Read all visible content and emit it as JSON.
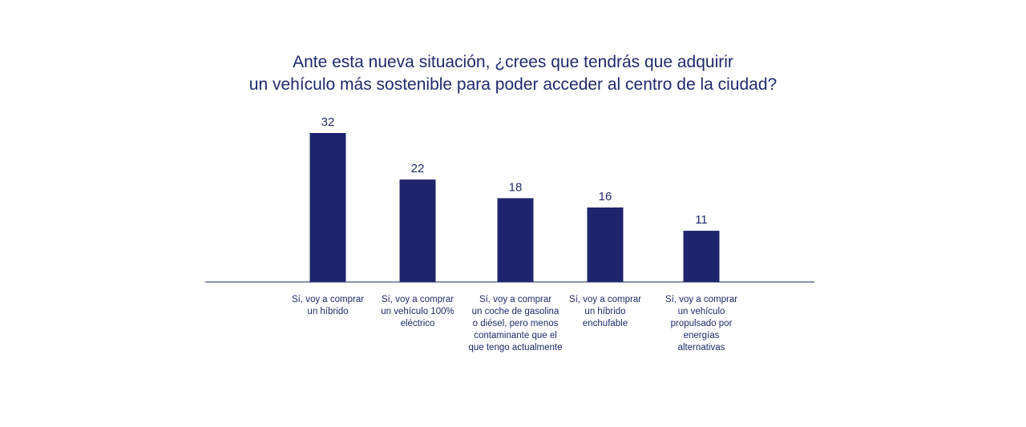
{
  "chart_data": {
    "type": "bar",
    "title_lines": [
      "Ante esta nueva situación, ¿crees que tendrás que adquirir",
      "un vehículo más sostenible para poder acceder al centro de la ciudad?"
    ],
    "categories": [
      "Sí, voy a comprar\nun híbrido",
      "Sí, voy a comprar\nun vehículo 100%\neléctrico",
      "Sí, voy a comprar\nun coche de gasolina\no diésel, pero menos\ncontaminante que el\nque tengo actualmente",
      "Sí, voy a comprar\nun híbrido\nenchufable",
      "Sí, voy a comprar\nun vehículo\npropulsado por\nenergías\nalternativas"
    ],
    "values": [
      32,
      22,
      18,
      16,
      11
    ],
    "value_labels": [
      "32",
      "22",
      "18",
      "16",
      "11"
    ],
    "ylim": [
      0,
      32
    ],
    "xlabel": "",
    "ylabel": "",
    "grid": false,
    "legend": "none",
    "colors": {
      "bar": "#1f246e",
      "text": "#1f2a6b",
      "axis": "#1f2a6b"
    }
  }
}
